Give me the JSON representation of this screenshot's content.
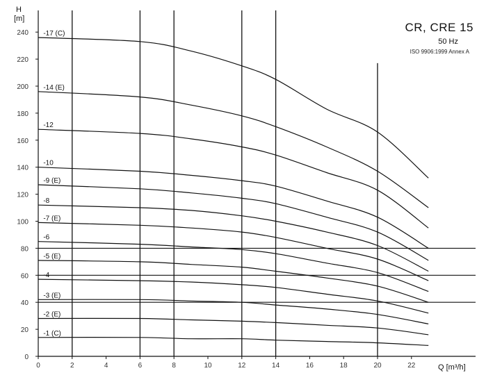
{
  "chart_data": {
    "type": "line",
    "title": "CR, CRE 15",
    "subtitle": "50 Hz",
    "standard": "ISO 9906:1999 Annex A",
    "ylabel": "H",
    "yunit": "[m]",
    "xlabel": "Q [m³/h]",
    "xlim": [
      0,
      23
    ],
    "ylim": [
      0,
      248
    ],
    "x_ticks": [
      0,
      2,
      4,
      6,
      8,
      10,
      12,
      14,
      16,
      18,
      20,
      22
    ],
    "y_ticks": [
      0,
      20,
      40,
      60,
      80,
      100,
      120,
      140,
      160,
      180,
      200,
      220,
      240
    ],
    "grid_vertical": [
      2,
      6,
      8,
      12,
      14
    ],
    "grid_vertical_partial": [
      {
        "x": 20,
        "y_to": 217
      }
    ],
    "grid_horizontal": [
      40,
      60,
      80
    ],
    "series": [
      {
        "name": "-17 (C)",
        "x": [
          0,
          6,
          9,
          12,
          14,
          17,
          20,
          23
        ],
        "values": [
          236,
          233,
          226,
          215,
          205,
          183,
          166,
          132
        ]
      },
      {
        "name": "-14 (E)",
        "x": [
          0,
          6,
          9,
          12,
          14,
          17,
          20,
          23
        ],
        "values": [
          196,
          192,
          186,
          178,
          170,
          155,
          137,
          110
        ]
      },
      {
        "name": "-12",
        "x": [
          0,
          6,
          9,
          12,
          14,
          17,
          20,
          23
        ],
        "values": [
          168,
          165,
          161,
          155,
          149,
          136,
          123,
          95
        ]
      },
      {
        "name": "-10",
        "x": [
          0,
          6,
          9,
          12,
          14,
          17,
          20,
          23
        ],
        "values": [
          140,
          137,
          134,
          130,
          126,
          115,
          103,
          80
        ]
      },
      {
        "name": "-9 (E)",
        "x": [
          0,
          6,
          9,
          12,
          14,
          17,
          20,
          23
        ],
        "values": [
          127,
          124,
          121,
          117,
          113,
          103,
          92,
          71
        ]
      },
      {
        "name": "-8",
        "x": [
          0,
          6,
          9,
          12,
          14,
          17,
          20,
          23
        ],
        "values": [
          112,
          110,
          108,
          104,
          100,
          92,
          82,
          63
        ]
      },
      {
        "name": "-7 (E)",
        "x": [
          0,
          6,
          9,
          12,
          14,
          17,
          20,
          23
        ],
        "values": [
          99,
          97,
          95,
          92,
          88,
          80,
          72,
          56
        ]
      },
      {
        "name": "-6",
        "x": [
          0,
          6,
          9,
          12,
          14,
          17,
          20,
          23
        ],
        "values": [
          85,
          83,
          81,
          79,
          76,
          69,
          62,
          48
        ]
      },
      {
        "name": "-5 (E)",
        "x": [
          0,
          6,
          9,
          12,
          14,
          17,
          20,
          23
        ],
        "values": [
          71,
          70,
          68,
          66,
          63,
          58,
          52,
          40
        ]
      },
      {
        "name": "-4",
        "x": [
          0,
          6,
          9,
          12,
          14,
          17,
          20,
          23
        ],
        "values": [
          57,
          56,
          55,
          53,
          51,
          46,
          41,
          32
        ]
      },
      {
        "name": "-3 (E)",
        "x": [
          0,
          6,
          9,
          12,
          14,
          17,
          20,
          23
        ],
        "values": [
          42,
          42,
          41,
          40,
          38,
          35,
          31,
          24
        ]
      },
      {
        "name": "-2 (E)",
        "x": [
          0,
          6,
          9,
          12,
          14,
          17,
          20,
          23
        ],
        "values": [
          28,
          28,
          27,
          26,
          25,
          23,
          21,
          16
        ]
      },
      {
        "name": "-1 (C)",
        "x": [
          0,
          6,
          9,
          12,
          14,
          17,
          20,
          23
        ],
        "values": [
          14,
          14,
          13,
          13,
          12,
          11,
          10,
          8
        ]
      }
    ]
  }
}
